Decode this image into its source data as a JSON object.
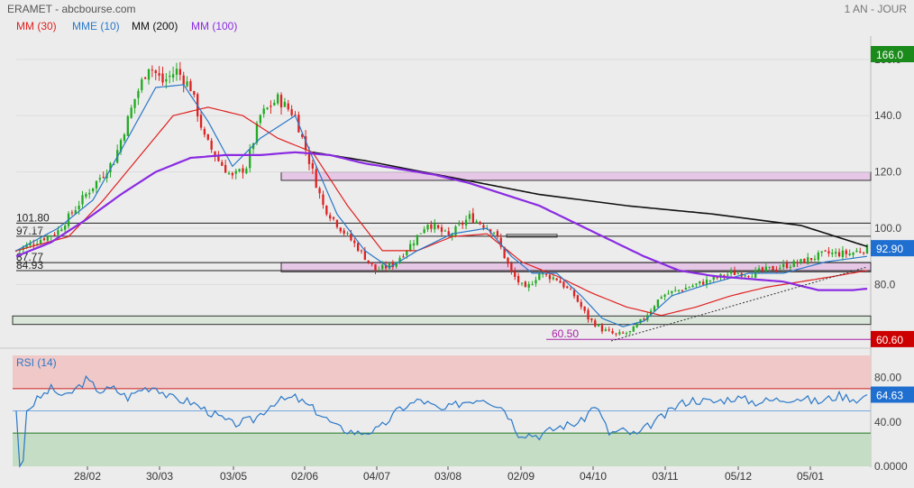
{
  "header": {
    "title": "ERAMET - abcbourse.com",
    "period": "1 AN - JOUR",
    "legend": [
      {
        "label": "MM (30)",
        "color": "#e02020"
      },
      {
        "label": "MME (10)",
        "color": "#2a78c8"
      },
      {
        "label": "MM (200)",
        "color": "#111111"
      },
      {
        "label": "MM (100)",
        "color": "#8a2be2"
      }
    ]
  },
  "chart_data": [
    {
      "type": "candlestick",
      "ylim": [
        58,
        167
      ],
      "y_ticks": [
        160,
        140,
        120,
        100,
        80
      ],
      "x_ticks": [
        "28/02",
        "30/03",
        "03/05",
        "02/06",
        "04/07",
        "03/08",
        "02/09",
        "04/10",
        "03/11",
        "05/12",
        "05/01"
      ],
      "price_badges": [
        {
          "label": "166.0",
          "value": 166.0,
          "color": "#1a8a1a"
        },
        {
          "label": "92.90",
          "value": 92.9,
          "color": "#1f6fd0"
        },
        {
          "label": "60.60",
          "value": 60.6,
          "color": "#cc0000"
        }
      ],
      "levels": [
        {
          "label": "101.80",
          "value": 101.8
        },
        {
          "label": "97.17",
          "value": 97.17
        },
        {
          "label": "87.77",
          "value": 87.77
        },
        {
          "label": "84.93",
          "value": 84.93
        },
        {
          "label": "60.50",
          "value": 60.5,
          "color": "#aa22aa"
        }
      ],
      "zones": [
        {
          "from": 117,
          "to": 120
        },
        {
          "from": 84.5,
          "to": 87.8
        },
        {
          "from": 65.8,
          "to": 68.8
        }
      ],
      "close_anchors": [
        [
          0,
          92
        ],
        [
          12,
          99
        ],
        [
          20,
          112
        ],
        [
          28,
          124
        ],
        [
          34,
          146
        ],
        [
          38,
          158
        ],
        [
          42,
          152
        ],
        [
          46,
          156
        ],
        [
          50,
          150
        ],
        [
          54,
          132
        ],
        [
          58,
          124
        ],
        [
          62,
          118
        ],
        [
          66,
          122
        ],
        [
          70,
          140
        ],
        [
          75,
          146
        ],
        [
          80,
          140
        ],
        [
          84,
          124
        ],
        [
          88,
          108
        ],
        [
          93,
          100
        ],
        [
          98,
          93
        ],
        [
          103,
          85
        ],
        [
          108,
          87
        ],
        [
          113,
          94
        ],
        [
          118,
          102
        ],
        [
          124,
          97
        ],
        [
          130,
          104
        ],
        [
          137,
          99
        ],
        [
          142,
          84
        ],
        [
          146,
          78
        ],
        [
          150,
          84
        ],
        [
          155,
          82
        ],
        [
          160,
          76
        ],
        [
          164,
          68
        ],
        [
          168,
          64
        ],
        [
          172,
          62
        ],
        [
          176,
          63
        ],
        [
          180,
          68
        ],
        [
          185,
          76
        ],
        [
          190,
          78
        ],
        [
          195,
          80
        ],
        [
          200,
          82
        ],
        [
          205,
          84
        ],
        [
          211,
          84
        ],
        [
          218,
          86
        ],
        [
          225,
          88
        ],
        [
          232,
          91
        ],
        [
          239,
          91
        ],
        [
          244,
          92.9
        ]
      ],
      "series": [
        {
          "name": "MM (30)",
          "color": "#e02020",
          "points": [
            [
              0,
              92
            ],
            [
              15,
              97
            ],
            [
              25,
              110
            ],
            [
              35,
              125
            ],
            [
              45,
              140
            ],
            [
              55,
              143
            ],
            [
              65,
              140
            ],
            [
              75,
              132
            ],
            [
              85,
              127
            ],
            [
              95,
              108
            ],
            [
              105,
              92
            ],
            [
              115,
              92
            ],
            [
              125,
              97
            ],
            [
              135,
              98
            ],
            [
              145,
              88
            ],
            [
              155,
              83
            ],
            [
              165,
              77
            ],
            [
              175,
              72
            ],
            [
              185,
              69
            ],
            [
              195,
              72
            ],
            [
              205,
              76
            ],
            [
              215,
              79
            ],
            [
              225,
              81
            ],
            [
              235,
              83
            ],
            [
              244,
              85
            ]
          ]
        },
        {
          "name": "MME (10)",
          "color": "#2a78c8",
          "points": [
            [
              0,
              92
            ],
            [
              12,
              100
            ],
            [
              22,
              110
            ],
            [
              32,
              132
            ],
            [
              40,
              150
            ],
            [
              48,
              151
            ],
            [
              55,
              138
            ],
            [
              62,
              122
            ],
            [
              70,
              132
            ],
            [
              80,
              140
            ],
            [
              85,
              125
            ],
            [
              92,
              105
            ],
            [
              100,
              92
            ],
            [
              107,
              86
            ],
            [
              115,
              92
            ],
            [
              125,
              98
            ],
            [
              135,
              100
            ],
            [
              142,
              90
            ],
            [
              148,
              84
            ],
            [
              155,
              84
            ],
            [
              162,
              76
            ],
            [
              168,
              68
            ],
            [
              174,
              65
            ],
            [
              180,
              67
            ],
            [
              188,
              76
            ],
            [
              198,
              80
            ],
            [
              210,
              84
            ],
            [
              220,
              84
            ],
            [
              232,
              88
            ],
            [
              244,
              90
            ]
          ]
        },
        {
          "name": "MM (200)",
          "color": "#111111",
          "points": [
            [
              85,
              127
            ],
            [
              100,
              124
            ],
            [
              125,
              118
            ],
            [
              150,
              112
            ],
            [
              175,
              108
            ],
            [
              200,
              105
            ],
            [
              225,
              101
            ],
            [
              244,
              93.5
            ]
          ]
        },
        {
          "name": "MM (100)",
          "color": "#8a2be2",
          "points": [
            [
              0,
              90
            ],
            [
              10,
              95
            ],
            [
              20,
              103
            ],
            [
              30,
              112
            ],
            [
              40,
              120
            ],
            [
              50,
              125
            ],
            [
              60,
              126
            ],
            [
              70,
              126
            ],
            [
              80,
              127
            ],
            [
              90,
              126
            ],
            [
              100,
              123
            ],
            [
              110,
              121
            ],
            [
              120,
              119
            ],
            [
              130,
              116
            ],
            [
              140,
              112
            ],
            [
              150,
              108
            ],
            [
              160,
              102
            ],
            [
              170,
              96
            ],
            [
              180,
              90
            ],
            [
              190,
              85
            ],
            [
              200,
              83
            ],
            [
              210,
              82
            ],
            [
              220,
              81
            ],
            [
              230,
              78
            ],
            [
              240,
              78
            ],
            [
              244,
              78.5
            ]
          ]
        }
      ]
    },
    {
      "type": "line",
      "name": "RSI (14)",
      "ylim": [
        0,
        100
      ],
      "y_ticks": [
        80,
        40,
        0
      ],
      "y_tick_labels": [
        "80.00",
        "40.00",
        "0.0000"
      ],
      "zones": [
        {
          "from": 70,
          "to": 100,
          "color": "#f0c8c8"
        },
        {
          "from": 0,
          "to": 30,
          "color": "#c5dcc5"
        }
      ],
      "midline": 50,
      "last_value": {
        "label": "64.63",
        "value": 64.63
      },
      "anchors": [
        [
          0,
          50
        ],
        [
          1,
          0
        ],
        [
          2,
          5
        ],
        [
          3,
          50
        ],
        [
          6,
          60
        ],
        [
          10,
          70
        ],
        [
          14,
          62
        ],
        [
          18,
          72
        ],
        [
          20,
          78
        ],
        [
          24,
          68
        ],
        [
          28,
          70
        ],
        [
          32,
          62
        ],
        [
          36,
          70
        ],
        [
          40,
          72
        ],
        [
          44,
          62
        ],
        [
          50,
          58
        ],
        [
          56,
          48
        ],
        [
          62,
          38
        ],
        [
          68,
          42
        ],
        [
          74,
          58
        ],
        [
          80,
          62
        ],
        [
          86,
          50
        ],
        [
          92,
          35
        ],
        [
          98,
          30
        ],
        [
          104,
          33
        ],
        [
          110,
          52
        ],
        [
          116,
          60
        ],
        [
          122,
          50
        ],
        [
          128,
          58
        ],
        [
          134,
          62
        ],
        [
          140,
          52
        ],
        [
          144,
          30
        ],
        [
          150,
          28
        ],
        [
          156,
          36
        ],
        [
          162,
          40
        ],
        [
          166,
          56
        ],
        [
          170,
          30
        ],
        [
          174,
          32
        ],
        [
          178,
          28
        ],
        [
          182,
          38
        ],
        [
          186,
          46
        ],
        [
          190,
          56
        ],
        [
          194,
          60
        ],
        [
          200,
          58
        ],
        [
          206,
          62
        ],
        [
          212,
          58
        ],
        [
          218,
          60
        ],
        [
          224,
          62
        ],
        [
          230,
          58
        ],
        [
          236,
          64
        ],
        [
          242,
          60
        ],
        [
          244,
          64.63
        ]
      ]
    }
  ]
}
